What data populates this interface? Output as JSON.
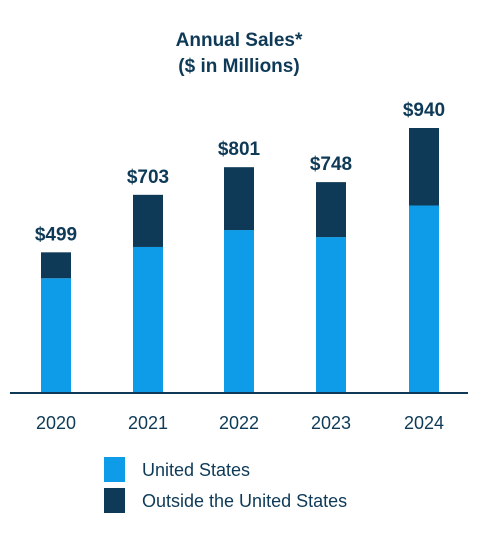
{
  "chart_data": {
    "type": "bar",
    "stacked": true,
    "title": "Annual Sales*",
    "subtitle": "($ in Millions)",
    "categories": [
      "2020",
      "2021",
      "2022",
      "2023",
      "2024"
    ],
    "series": [
      {
        "name": "United States",
        "color": "#0e9be8",
        "values": [
          407,
          518,
          578,
          553,
          665
        ]
      },
      {
        "name": "Outside the United States",
        "color": "#0e3a57",
        "values": [
          92,
          185,
          223,
          195,
          275
        ]
      }
    ],
    "totals": [
      499,
      703,
      801,
      748,
      940
    ],
    "total_labels": [
      "$499",
      "$703",
      "$801",
      "$748",
      "$940"
    ],
    "ylim": [
      0,
      940
    ],
    "grid": false,
    "legend": "bottom",
    "axis_color": "#0e3a57"
  }
}
